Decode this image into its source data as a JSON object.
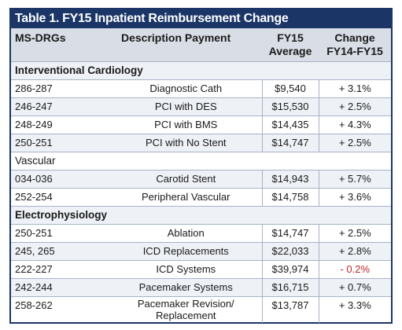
{
  "title": "Table 1. FY15 Inpatient Reimbursement Change",
  "headers": {
    "drg": "MS-DRGs",
    "description": "Description Payment",
    "avg_line1": "FY15",
    "avg_line2": "Average",
    "chg_line1": "Change",
    "chg_line2": "FY14-FY15"
  },
  "groups": [
    {
      "name": "Interventional Cardiology",
      "rows": [
        {
          "drg": "286-287",
          "desc": "Diagnostic Cath",
          "avg": "$9,540",
          "chg": "+ 3.1%"
        },
        {
          "drg": "246-247",
          "desc": "PCI with DES",
          "avg": "$15,530",
          "chg": "+ 2.5%"
        },
        {
          "drg": "248-249",
          "desc": "PCI with BMS",
          "avg": "$14,435",
          "chg": "+ 4.3%"
        },
        {
          "drg": "250-251",
          "desc": "PCI with No Stent",
          "avg": "$14,747",
          "chg": "+ 2.5%"
        }
      ]
    },
    {
      "name": "Vascular",
      "rows": [
        {
          "drg": "034-036",
          "desc": "Carotid Stent",
          "avg": "$14,943",
          "chg": "+ 5.7%"
        },
        {
          "drg": "252-254",
          "desc": "Peripheral Vascular",
          "avg": "$14,758",
          "chg": "+ 3.6%"
        }
      ]
    },
    {
      "name": "Electrophysiology",
      "rows": [
        {
          "drg": "250-251",
          "desc": "Ablation",
          "avg": "$14,747",
          "chg": "+ 2.5%"
        },
        {
          "drg": "245, 265",
          "desc": "ICD Replacements",
          "avg": "$22,033",
          "chg": "+ 2.8%"
        },
        {
          "drg": "222-227",
          "desc": "ICD Systems",
          "avg": "$39,974",
          "chg": "- 0.2%"
        },
        {
          "drg": "242-244",
          "desc": "Pacemaker Systems",
          "avg": "$16,715",
          "chg": "+ 0.7%"
        },
        {
          "drg": "258-262",
          "desc_line1": "Pacemaker Revision/",
          "desc_line2": "Replacement",
          "avg": "$13,787",
          "chg": "+ 3.3%"
        }
      ]
    }
  ],
  "colors": {
    "title_bg": "#1a3566",
    "header_bg": "#d8dde6",
    "negative": "#c0262c"
  }
}
